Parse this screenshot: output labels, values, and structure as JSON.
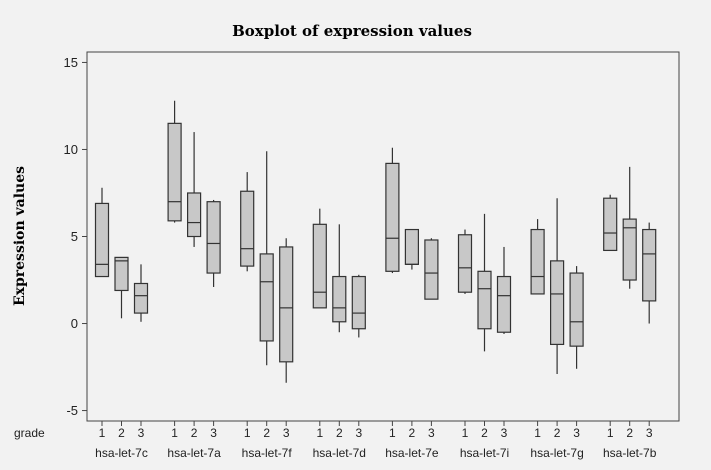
{
  "chart_data": {
    "type": "boxplot",
    "title": "Boxplot of expression values",
    "xlabel": "grade",
    "ylabel": "Expression values",
    "ylim": [
      -5.6,
      15.6
    ],
    "yticks": [
      -5,
      0,
      5,
      10,
      15
    ],
    "grades": [
      "1",
      "2",
      "3"
    ],
    "box_color": "#c8c8c8",
    "groups": [
      {
        "label": "hsa-let-7c",
        "boxes": [
          {
            "grade": "1",
            "min": 2.7,
            "q1": 2.7,
            "median": 3.4,
            "q3": 6.9,
            "max": 7.8
          },
          {
            "grade": "2",
            "min": 0.3,
            "q1": 1.9,
            "median": 3.6,
            "q3": 3.8,
            "max": 3.8
          },
          {
            "grade": "3",
            "min": 0.1,
            "q1": 0.6,
            "median": 1.6,
            "q3": 2.3,
            "max": 3.4
          }
        ]
      },
      {
        "label": "hsa-let-7a",
        "boxes": [
          {
            "grade": "1",
            "min": 5.8,
            "q1": 5.9,
            "median": 7.0,
            "q3": 11.5,
            "max": 12.8
          },
          {
            "grade": "2",
            "min": 4.4,
            "q1": 5.0,
            "median": 5.8,
            "q3": 7.5,
            "max": 11.0
          },
          {
            "grade": "3",
            "min": 2.1,
            "q1": 2.9,
            "median": 4.6,
            "q3": 7.0,
            "max": 7.1
          }
        ]
      },
      {
        "label": "hsa-let-7f",
        "boxes": [
          {
            "grade": "1",
            "min": 3.0,
            "q1": 3.3,
            "median": 4.3,
            "q3": 7.6,
            "max": 8.7
          },
          {
            "grade": "2",
            "min": -2.4,
            "q1": -1.0,
            "median": 2.4,
            "q3": 4.0,
            "max": 9.9
          },
          {
            "grade": "3",
            "min": -3.4,
            "q1": -2.2,
            "median": 0.9,
            "q3": 4.4,
            "max": 4.9
          }
        ]
      },
      {
        "label": "hsa-let-7d",
        "boxes": [
          {
            "grade": "1",
            "min": 0.9,
            "q1": 0.9,
            "median": 1.8,
            "q3": 5.7,
            "max": 6.6
          },
          {
            "grade": "2",
            "min": -0.5,
            "q1": 0.1,
            "median": 0.9,
            "q3": 2.7,
            "max": 5.7
          },
          {
            "grade": "3",
            "min": -0.8,
            "q1": -0.3,
            "median": 0.6,
            "q3": 2.7,
            "max": 2.8
          }
        ]
      },
      {
        "label": "hsa-let-7e",
        "boxes": [
          {
            "grade": "1",
            "min": 2.9,
            "q1": 3.0,
            "median": 4.9,
            "q3": 9.2,
            "max": 10.1
          },
          {
            "grade": "2",
            "min": 3.1,
            "q1": 3.4,
            "median": 3.4,
            "q3": 5.4,
            "max": 5.4
          },
          {
            "grade": "3",
            "min": 1.4,
            "q1": 1.4,
            "median": 2.9,
            "q3": 4.8,
            "max": 4.9
          }
        ]
      },
      {
        "label": "hsa-let-7i",
        "boxes": [
          {
            "grade": "1",
            "min": 1.7,
            "q1": 1.8,
            "median": 3.2,
            "q3": 5.1,
            "max": 5.4
          },
          {
            "grade": "2",
            "min": -1.6,
            "q1": -0.3,
            "median": 2.0,
            "q3": 3.0,
            "max": 6.3
          },
          {
            "grade": "3",
            "min": -0.6,
            "q1": -0.5,
            "median": 1.6,
            "q3": 2.7,
            "max": 4.4
          }
        ]
      },
      {
        "label": "hsa-let-7g",
        "boxes": [
          {
            "grade": "1",
            "min": 1.7,
            "q1": 1.7,
            "median": 2.7,
            "q3": 5.4,
            "max": 6.0
          },
          {
            "grade": "2",
            "min": -2.9,
            "q1": -1.2,
            "median": 1.7,
            "q3": 3.6,
            "max": 7.2
          },
          {
            "grade": "3",
            "min": -2.6,
            "q1": -1.3,
            "median": 0.1,
            "q3": 2.9,
            "max": 3.3
          }
        ]
      },
      {
        "label": "hsa-let-7b",
        "boxes": [
          {
            "grade": "1",
            "min": 4.2,
            "q1": 4.2,
            "median": 5.2,
            "q3": 7.2,
            "max": 7.4
          },
          {
            "grade": "2",
            "min": 2.0,
            "q1": 2.5,
            "median": 5.5,
            "q3": 6.0,
            "max": 9.0
          },
          {
            "grade": "3",
            "min": 0.0,
            "q1": 1.3,
            "median": 4.0,
            "q3": 5.4,
            "max": 5.8
          }
        ]
      }
    ]
  }
}
